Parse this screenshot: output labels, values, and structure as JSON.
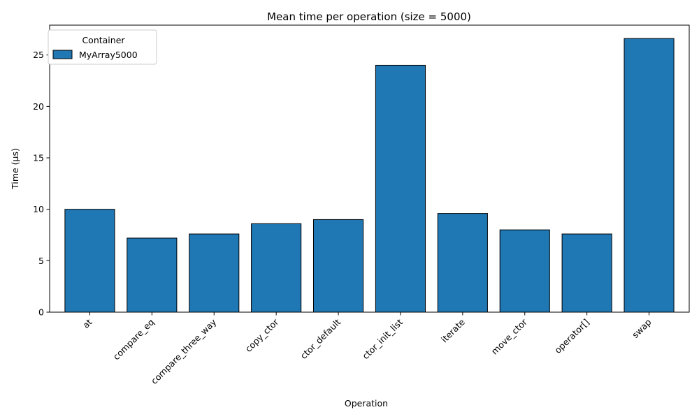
{
  "chart_data": {
    "type": "bar",
    "title": "Mean time per operation (size = 5000)",
    "xlabel": "Operation",
    "ylabel": "Time (µs)",
    "categories": [
      "at",
      "compare_eq",
      "compare_three_way",
      "copy_ctor",
      "ctor_default",
      "ctor_init_list",
      "iterate",
      "move_ctor",
      "operator[]",
      "swap"
    ],
    "series": [
      {
        "name": "MyArray5000",
        "values": [
          10.0,
          7.2,
          7.6,
          8.6,
          9.0,
          24.0,
          9.6,
          8.0,
          7.6,
          26.6
        ],
        "color": "#1f77b4"
      }
    ],
    "ylim": [
      0,
      27.9
    ],
    "yticks": [
      0,
      5,
      10,
      15,
      20,
      25
    ],
    "grid": false,
    "legend": {
      "title": "Container",
      "placement": "top-left"
    },
    "xtick_rotation_deg": 45
  }
}
